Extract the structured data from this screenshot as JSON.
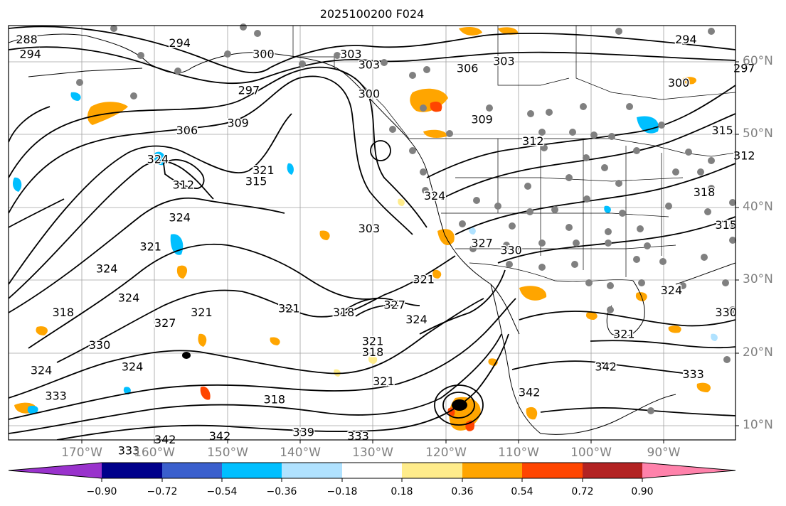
{
  "title": "2025100200 F024",
  "lat_labels": [
    "60°N",
    "50°N",
    "40°N",
    "30°N",
    "20°N",
    "10°N"
  ],
  "lon_labels": [
    "170°W",
    "160°W",
    "150°W",
    "140°W",
    "130°W",
    "120°W",
    "110°W",
    "100°W",
    "90°W"
  ],
  "colorbar": {
    "ticks": [
      "−0.90",
      "−0.72",
      "−0.54",
      "−0.36",
      "−0.18",
      "0.18",
      "0.36",
      "0.54",
      "0.72",
      "0.90"
    ],
    "colors": [
      "#9932cc",
      "#00008b",
      "#3a5fcd",
      "#00bfff",
      "#b0e2ff",
      "#ffffff",
      "#ffec8b",
      "#ffa500",
      "#ff4500",
      "#b22222",
      "#ff82ab"
    ]
  },
  "contour_labels": [
    {
      "text": "288",
      "lon": -177.5,
      "lat": 64.0
    },
    {
      "text": "294",
      "lon": -177.0,
      "lat": 62.0
    },
    {
      "text": "294",
      "lon": -156.5,
      "lat": 63.5
    },
    {
      "text": "300",
      "lon": -145.0,
      "lat": 62.0
    },
    {
      "text": "297",
      "lon": -147.0,
      "lat": 57.0
    },
    {
      "text": "303",
      "lon": -133.0,
      "lat": 62.0
    },
    {
      "text": "303",
      "lon": -130.5,
      "lat": 60.5
    },
    {
      "text": "300",
      "lon": -130.5,
      "lat": 56.5
    },
    {
      "text": "306",
      "lon": -117.0,
      "lat": 60.0
    },
    {
      "text": "303",
      "lon": -112.0,
      "lat": 61.0
    },
    {
      "text": "294",
      "lon": -87.0,
      "lat": 64.0
    },
    {
      "text": "300",
      "lon": -88.0,
      "lat": 58.0
    },
    {
      "text": "297",
      "lon": -79.0,
      "lat": 60.0
    },
    {
      "text": "309",
      "lon": -115.0,
      "lat": 53.0
    },
    {
      "text": "312",
      "lon": -108.0,
      "lat": 50.0
    },
    {
      "text": "306",
      "lon": -155.5,
      "lat": 51.5
    },
    {
      "text": "309",
      "lon": -148.5,
      "lat": 52.5
    },
    {
      "text": "324",
      "lon": -159.5,
      "lat": 47.5
    },
    {
      "text": "312",
      "lon": -156.0,
      "lat": 44.0
    },
    {
      "text": "321",
      "lon": -145.0,
      "lat": 46.0
    },
    {
      "text": "315",
      "lon": -146.0,
      "lat": 44.5
    },
    {
      "text": "324",
      "lon": -156.5,
      "lat": 39.5
    },
    {
      "text": "303",
      "lon": -130.5,
      "lat": 38.0
    },
    {
      "text": "324",
      "lon": -121.5,
      "lat": 42.5
    },
    {
      "text": "321",
      "lon": -160.5,
      "lat": 35.5
    },
    {
      "text": "324",
      "lon": -166.5,
      "lat": 32.5
    },
    {
      "text": "327",
      "lon": -115.0,
      "lat": 36.0
    },
    {
      "text": "330",
      "lon": -111.0,
      "lat": 35.0
    },
    {
      "text": "321",
      "lon": -123.0,
      "lat": 31.0
    },
    {
      "text": "324",
      "lon": -163.5,
      "lat": 28.5
    },
    {
      "text": "318",
      "lon": -172.5,
      "lat": 26.5
    },
    {
      "text": "321",
      "lon": -153.5,
      "lat": 26.5
    },
    {
      "text": "327",
      "lon": -158.5,
      "lat": 25.0
    },
    {
      "text": "321",
      "lon": -141.5,
      "lat": 27.0
    },
    {
      "text": "318",
      "lon": -134.0,
      "lat": 26.5
    },
    {
      "text": "327",
      "lon": -127.0,
      "lat": 27.5
    },
    {
      "text": "324",
      "lon": -124.0,
      "lat": 25.5
    },
    {
      "text": "321",
      "lon": -130.0,
      "lat": 22.5
    },
    {
      "text": "318",
      "lon": -130.0,
      "lat": 21.0
    },
    {
      "text": "330",
      "lon": -167.5,
      "lat": 22.0
    },
    {
      "text": "324",
      "lon": -163.0,
      "lat": 19.0
    },
    {
      "text": "324",
      "lon": -175.5,
      "lat": 18.5
    },
    {
      "text": "321",
      "lon": -128.5,
      "lat": 17.0
    },
    {
      "text": "318",
      "lon": -143.5,
      "lat": 14.5
    },
    {
      "text": "333",
      "lon": -173.5,
      "lat": 15.0
    },
    {
      "text": "342",
      "lon": -158.5,
      "lat": 9.0
    },
    {
      "text": "333",
      "lon": -163.5,
      "lat": 7.5
    },
    {
      "text": "342",
      "lon": -151.0,
      "lat": 9.5
    },
    {
      "text": "339",
      "lon": -139.5,
      "lat": 10.0
    },
    {
      "text": "333",
      "lon": -132.0,
      "lat": 9.5
    },
    {
      "text": "342",
      "lon": -108.5,
      "lat": 15.5
    },
    {
      "text": "321",
      "lon": -95.5,
      "lat": 23.5
    },
    {
      "text": "342",
      "lon": -98.0,
      "lat": 19.0
    },
    {
      "text": "333",
      "lon": -86.0,
      "lat": 18.0
    },
    {
      "text": "324",
      "lon": -89.0,
      "lat": 29.5
    },
    {
      "text": "330",
      "lon": -81.5,
      "lat": 26.5
    },
    {
      "text": "318",
      "lon": -84.5,
      "lat": 43.0
    },
    {
      "text": "315",
      "lon": -81.5,
      "lat": 38.5
    },
    {
      "text": "315",
      "lon": -82.0,
      "lat": 51.5
    },
    {
      "text": "312",
      "lon": -79.0,
      "lat": 48.0
    }
  ]
}
